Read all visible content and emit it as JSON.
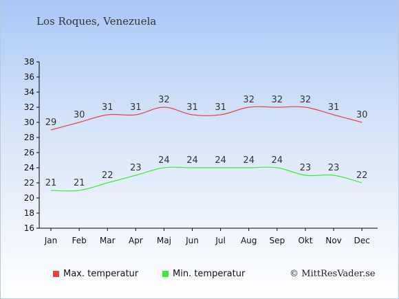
{
  "location": "Los Roques, Venezuela",
  "copyright": "© MittResVader.se",
  "colors": {
    "max": "#e8414a",
    "min": "#3ee83a",
    "axis": "#000000",
    "label": "#333333"
  },
  "chart_data": {
    "type": "line",
    "title": "Los Roques, Venezuela",
    "categories": [
      "Jan",
      "Feb",
      "Mar",
      "Apr",
      "Maj",
      "Jun",
      "Jul",
      "Aug",
      "Sep",
      "Okt",
      "Nov",
      "Dec"
    ],
    "series": [
      {
        "name": "Max. temperatur",
        "values": [
          29,
          30,
          31,
          31,
          32,
          31,
          31,
          32,
          32,
          32,
          31,
          30
        ]
      },
      {
        "name": "Min. temperatur",
        "values": [
          21,
          21,
          22,
          23,
          24,
          24,
          24,
          24,
          24,
          23,
          23,
          22
        ]
      }
    ],
    "ylim": [
      16,
      38
    ],
    "yticks": [
      16,
      18,
      20,
      22,
      24,
      26,
      28,
      30,
      32,
      34,
      36,
      38
    ],
    "grid": false,
    "legend": "bottom"
  }
}
